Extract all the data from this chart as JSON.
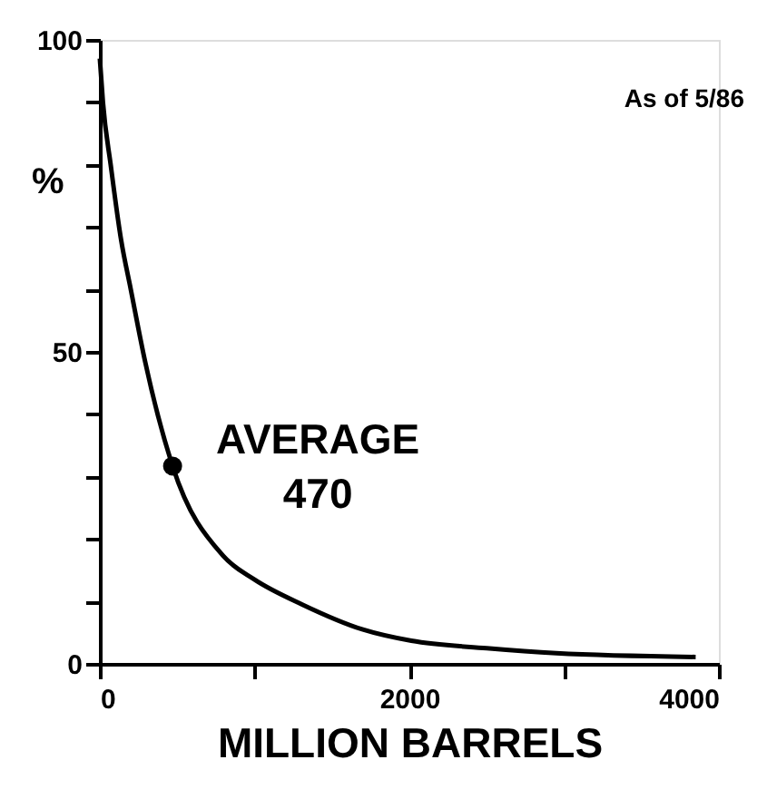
{
  "chart_data": {
    "type": "line",
    "xlabel": "MILLION BARRELS",
    "ylabel": "%",
    "x": [
      0,
      20,
      70,
      137,
      200,
      293,
      470,
      797,
      1000,
      1309,
      1700,
      2013,
      2500,
      2950,
      3850
    ],
    "series": [
      {
        "color": "#000000",
        "values": [
          97,
          90,
          80,
          68,
          60,
          48.4,
          31.7,
          17.3,
          13.5,
          9.5,
          5.5,
          3.7,
          2.5,
          1.7,
          1.1
        ]
      }
    ],
    "xlim": [
      0,
      4000
    ],
    "ylim": [
      0,
      100
    ],
    "xticks": [
      0,
      {
        "value": 1000,
        "label": null
      },
      2000,
      {
        "value": 3000,
        "label": null
      },
      4000
    ],
    "yticks": [
      0,
      {
        "value": 10,
        "label": null
      },
      {
        "value": 20,
        "label": null
      },
      {
        "value": 30,
        "label": null
      },
      {
        "value": 40,
        "label": null
      },
      50,
      {
        "value": 60,
        "label": null
      },
      {
        "value": 70,
        "label": null
      },
      {
        "value": 80,
        "label": null
      },
      {
        "value": 90,
        "label": null
      },
      100
    ],
    "annotations": [
      "As of 5/86",
      {
        "text": "AVERAGE\n470",
        "x": 470,
        "y": 31.7
      }
    ],
    "grid": false,
    "marker": "none",
    "line_style": "solid"
  }
}
